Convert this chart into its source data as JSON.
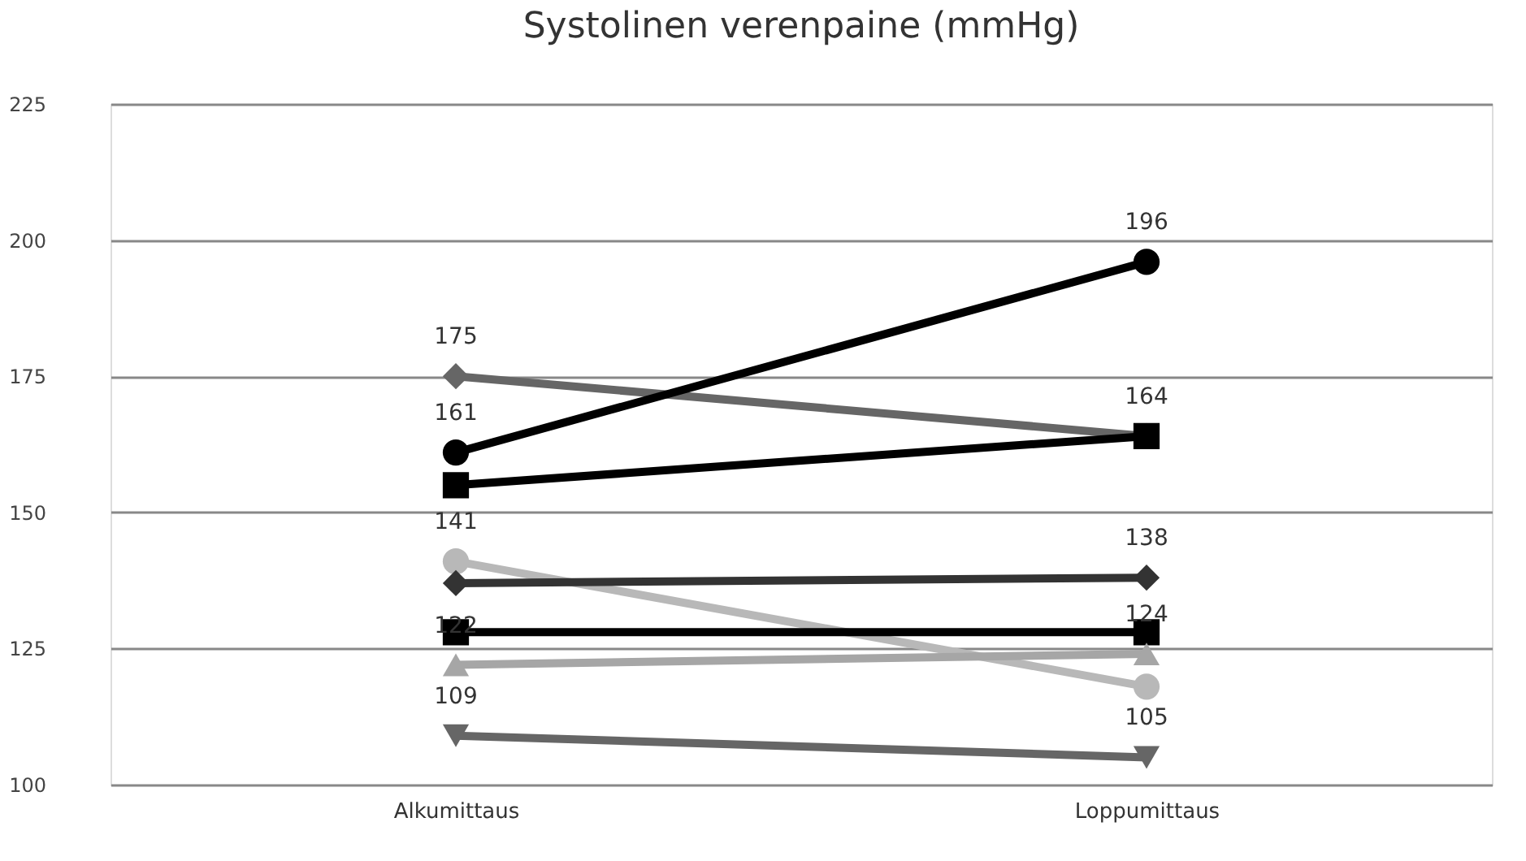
{
  "chart_data": {
    "type": "line",
    "title": "Systolinen verenpaine (mmHg)",
    "categories": [
      "Alkumittaus",
      "Loppumittaus"
    ],
    "ylim": [
      100,
      225
    ],
    "yticks": [
      100,
      125,
      150,
      175,
      200,
      225
    ],
    "grid": "y",
    "series": [
      {
        "color": "#666666",
        "marker": "diamond",
        "values": [
          175,
          164
        ],
        "value_labels": [
          "175",
          "164"
        ]
      },
      {
        "color": "#000000",
        "marker": "circle",
        "values": [
          161,
          196
        ],
        "value_labels": [
          "161",
          "196"
        ]
      },
      {
        "color": "#000000",
        "marker": "square",
        "values": [
          155,
          164
        ],
        "value_labels": [
          null,
          null
        ]
      },
      {
        "color": "#b8b8b8",
        "marker": "circle",
        "values": [
          141,
          118
        ],
        "value_labels": [
          "141",
          null
        ]
      },
      {
        "color": "#333333",
        "marker": "diamond",
        "values": [
          137,
          138
        ],
        "value_labels": [
          null,
          "138"
        ]
      },
      {
        "color": "#000000",
        "marker": "square",
        "values": [
          128,
          128
        ],
        "value_labels": [
          null,
          null
        ]
      },
      {
        "color": "#a6a6a6",
        "marker": "triangle-up",
        "values": [
          122,
          124
        ],
        "value_labels": [
          "122",
          "124"
        ]
      },
      {
        "color": "#666666",
        "marker": "triangle-down",
        "values": [
          109,
          105
        ],
        "value_labels": [
          "109",
          "105"
        ]
      }
    ]
  }
}
